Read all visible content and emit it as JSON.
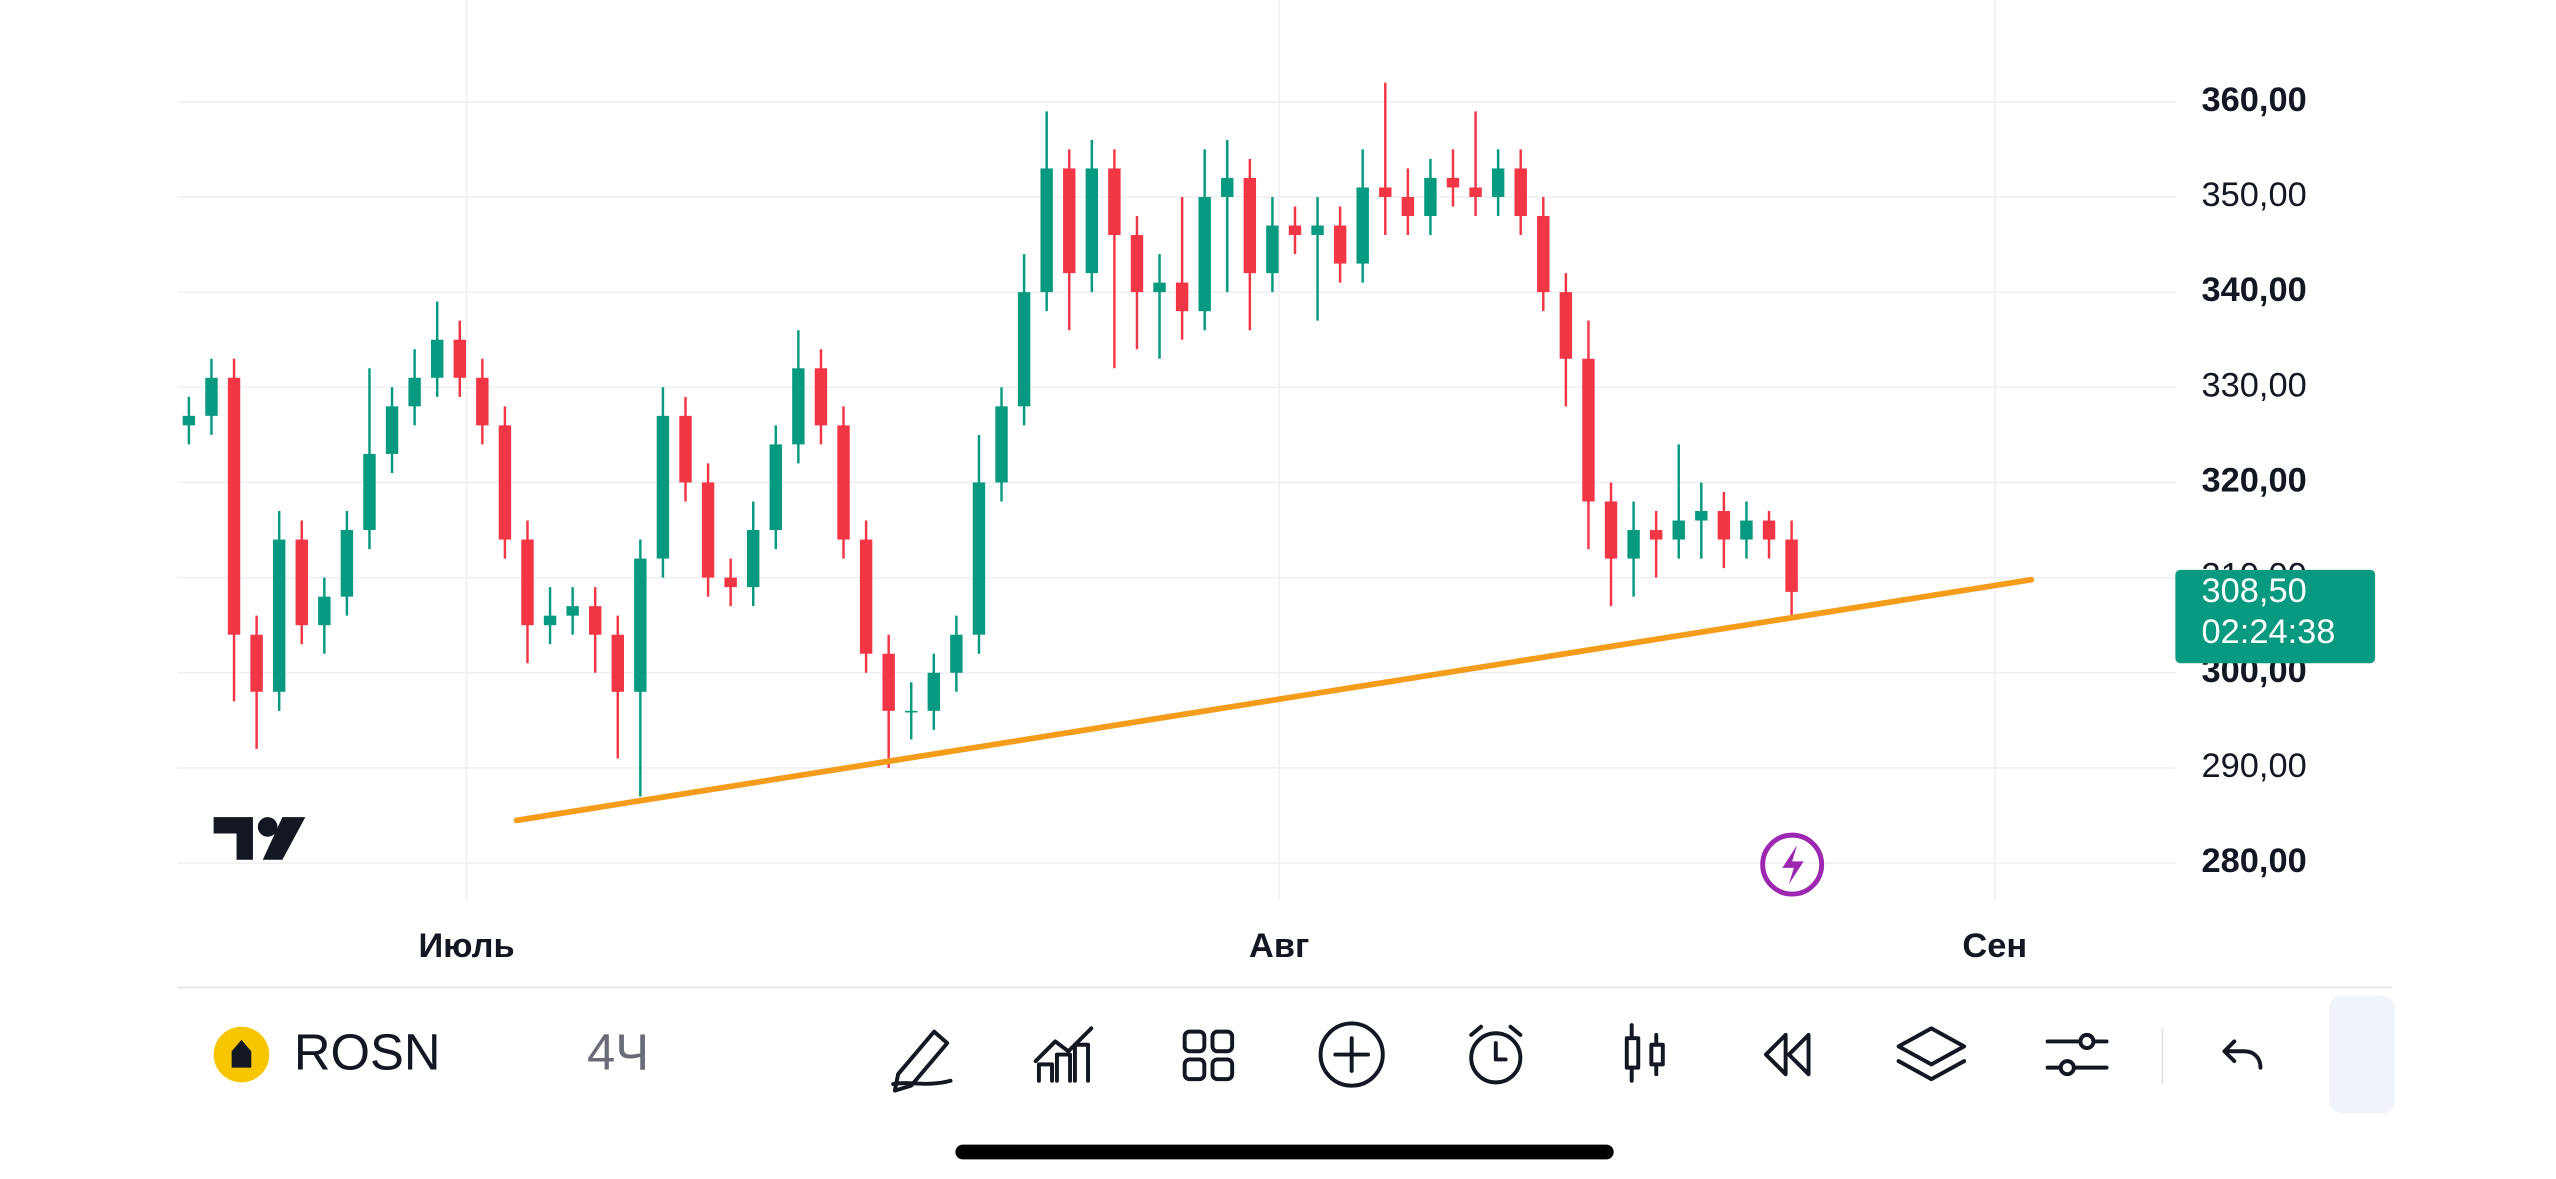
{
  "chart_data": {
    "type": "candlestick",
    "open": [
      326,
      327,
      331,
      304,
      298,
      314,
      305,
      308,
      315,
      323,
      328,
      331,
      335,
      331,
      326,
      314,
      305,
      306,
      307,
      304,
      298,
      312,
      327,
      320,
      310,
      309,
      315,
      324,
      332,
      326,
      314,
      302,
      296,
      296,
      300,
      304,
      320,
      328,
      340,
      353,
      342,
      353,
      346,
      340,
      341,
      338,
      350,
      352,
      342,
      347,
      346,
      347,
      343,
      351,
      350,
      348,
      352,
      351,
      350,
      353,
      348,
      340,
      333,
      318,
      312,
      315,
      314,
      316,
      317,
      314,
      316,
      314
    ],
    "high": [
      329,
      333,
      333,
      306,
      317,
      316,
      310,
      317,
      332,
      330,
      334,
      339,
      337,
      333,
      328,
      316,
      309,
      309,
      309,
      306,
      314,
      330,
      329,
      322,
      312,
      318,
      326,
      336,
      334,
      328,
      316,
      304,
      299,
      302,
      306,
      325,
      330,
      344,
      359,
      355,
      356,
      355,
      348,
      344,
      350,
      355,
      356,
      354,
      350,
      349,
      350,
      349,
      355,
      362,
      353,
      354,
      355,
      359,
      355,
      355,
      350,
      342,
      337,
      320,
      318,
      317,
      324,
      320,
      319,
      318,
      317,
      316
    ],
    "low": [
      324,
      325,
      297,
      292,
      296,
      303,
      302,
      306,
      313,
      321,
      326,
      329,
      329,
      324,
      312,
      301,
      303,
      304,
      300,
      291,
      287,
      310,
      318,
      308,
      307,
      307,
      313,
      322,
      324,
      312,
      300,
      290,
      293,
      294,
      298,
      302,
      318,
      326,
      338,
      336,
      340,
      332,
      334,
      333,
      335,
      336,
      340,
      336,
      340,
      344,
      337,
      341,
      341,
      346,
      346,
      346,
      349,
      348,
      348,
      346,
      338,
      328,
      313,
      307,
      308,
      310,
      312,
      312,
      311,
      312,
      312,
      306
    ],
    "close": [
      327,
      331,
      304,
      298,
      314,
      305,
      308,
      315,
      323,
      328,
      331,
      335,
      331,
      326,
      314,
      305,
      306,
      307,
      304,
      298,
      312,
      327,
      320,
      310,
      309,
      315,
      324,
      332,
      326,
      314,
      302,
      296,
      296,
      300,
      304,
      320,
      328,
      340,
      353,
      342,
      353,
      346,
      340,
      341,
      338,
      350,
      352,
      342,
      347,
      346,
      347,
      343,
      351,
      350,
      348,
      352,
      351,
      350,
      353,
      348,
      340,
      333,
      318,
      312,
      315,
      314,
      316,
      317,
      314,
      316,
      314,
      308.5
    ],
    "up_color": "#089981",
    "down_color": "#f23645",
    "xlim": [
      -0.5,
      88
    ],
    "xticks": [
      {
        "value": 12.3,
        "label": "Июль"
      },
      {
        "value": 48.3,
        "label": "Авг"
      },
      {
        "value": 80,
        "label": "Сен"
      }
    ],
    "ylim": [
      276.4,
      370.7
    ],
    "yticks": [
      {
        "value": 280,
        "label": "280,00"
      },
      {
        "value": 290,
        "label": "290,00"
      },
      {
        "value": 300,
        "label": "300,00"
      },
      {
        "value": 310,
        "label": "310,00"
      },
      {
        "value": 320,
        "label": "320,00"
      },
      {
        "value": 330,
        "label": "330,00"
      },
      {
        "value": 340,
        "label": "340,00"
      },
      {
        "value": 350,
        "label": "350,00"
      },
      {
        "value": 360,
        "label": "360,00"
      }
    ],
    "grid": true
  },
  "price_badge": {
    "price": "308,50",
    "countdown": "02:24:38"
  },
  "toolbar": {
    "symbol": "ROSN",
    "interval": "4Ч"
  }
}
